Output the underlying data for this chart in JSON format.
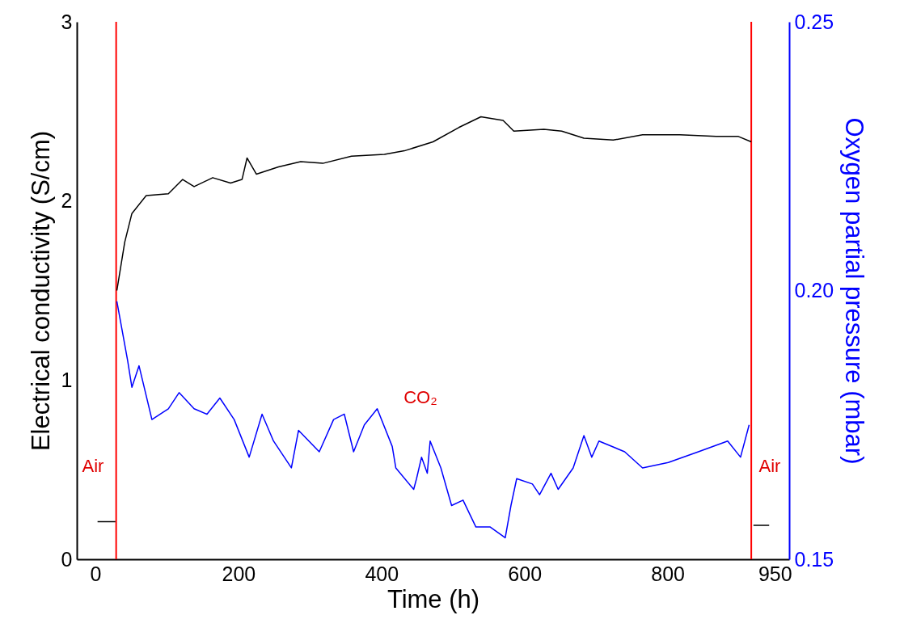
{
  "chart_data": {
    "type": "line",
    "xlabel": "Time (h)",
    "ylabel": "Electrical conductivity (S/cm)",
    "y2label": "Oxygen partial pressure (mbar)",
    "xlim": [
      -26,
      970
    ],
    "xticks": [
      0,
      200,
      400,
      600,
      800,
      950
    ],
    "ylim": [
      0,
      3
    ],
    "yticks": [
      0,
      1,
      2,
      3
    ],
    "y2lim": [
      0.15,
      0.25
    ],
    "y2ticks": [
      0.15,
      {
        "value": 0.2,
        "label": "0.20"
      },
      0.25
    ],
    "series": [
      {
        "color": "#000000",
        "x": [
          3,
          28,
          29.5,
          30,
          41,
          51,
          71,
          102,
          122,
          138,
          164,
          189,
          205,
          212,
          225,
          256,
          287,
          318,
          358,
          404,
          432,
          472,
          508,
          539,
          570,
          585,
          627,
          652,
          683,
          724,
          765,
          817,
          868,
          899,
          917,
          918,
          920,
          942
        ],
        "values": [
          0.21,
          0.21,
          null,
          1.5,
          1.77,
          1.93,
          2.03,
          2.04,
          2.12,
          2.08,
          2.13,
          2.1,
          2.12,
          2.24,
          2.15,
          2.19,
          2.22,
          2.21,
          2.25,
          2.26,
          2.28,
          2.33,
          2.41,
          2.47,
          2.45,
          2.39,
          2.4,
          2.39,
          2.35,
          2.34,
          2.37,
          2.37,
          2.36,
          2.36,
          2.33,
          null,
          0.19,
          0.19
        ]
      },
      {
        "color": "#0000ff",
        "axis": "y2",
        "x": [
          30,
          45,
          51,
          61,
          79,
          102,
          117,
          138,
          156,
          174,
          194,
          215,
          233,
          249,
          274,
          284,
          313,
          333,
          348,
          361,
          376,
          394,
          415,
          420,
          445,
          449,
          456,
          464,
          468,
          483,
          498,
          514,
          532,
          552,
          573,
          581,
          589,
          611,
          621,
          637,
          647,
          668,
          683,
          694,
          704,
          740,
          765,
          801,
          843,
          884,
          902,
          914
        ],
        "values": [
          0.198,
          0.187,
          0.182,
          0.186,
          0.176,
          0.178,
          0.181,
          0.178,
          0.177,
          0.18,
          0.176,
          0.169,
          0.177,
          0.172,
          0.167,
          0.174,
          0.17,
          0.176,
          0.177,
          0.17,
          0.175,
          0.178,
          0.171,
          0.167,
          0.163,
          0.165,
          0.169,
          0.166,
          0.172,
          0.167,
          0.16,
          0.161,
          0.156,
          0.156,
          0.154,
          0.16,
          0.165,
          0.164,
          0.162,
          0.166,
          0.163,
          0.167,
          0.173,
          0.169,
          0.172,
          0.17,
          0.167,
          0.168,
          0.17,
          0.172,
          0.169,
          0.175
        ]
      }
    ],
    "ref_lines": [
      {
        "axis": "x",
        "value": 29,
        "color": "#ff0000"
      },
      {
        "axis": "x",
        "value": 917,
        "color": "#ff0000"
      }
    ],
    "annotations": [
      "Air",
      "CO₂",
      "Air"
    ]
  }
}
